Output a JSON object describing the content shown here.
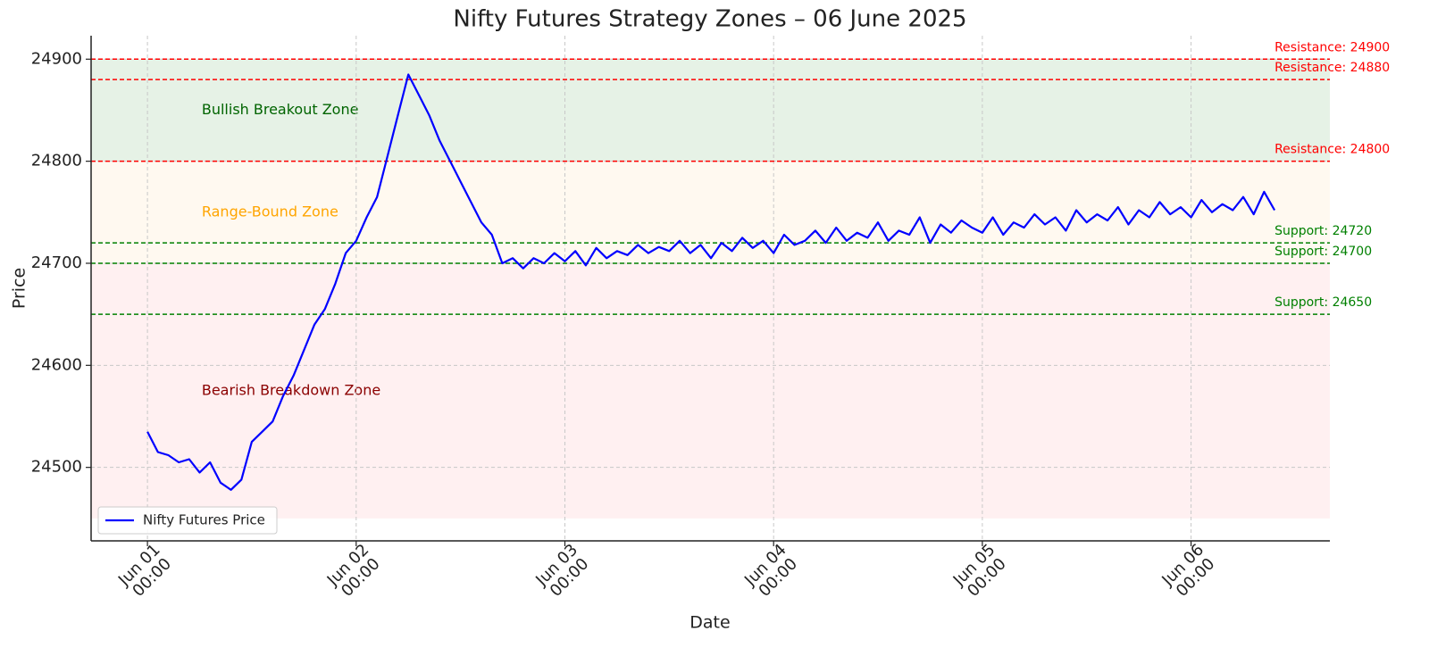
{
  "chart_data": {
    "type": "line",
    "title": "Nifty Futures Strategy Zones – 06 June 2025",
    "xlabel": "Date",
    "ylabel": "Price",
    "x": [
      0,
      0.05,
      0.1,
      0.15,
      0.2,
      0.25,
      0.3,
      0.35,
      0.4,
      0.45,
      0.5,
      0.55,
      0.6,
      0.65,
      0.7,
      0.75,
      0.8,
      0.85,
      0.9,
      0.95,
      1,
      1.05,
      1.1,
      1.15,
      1.2,
      1.25,
      1.3,
      1.35,
      1.4,
      1.45,
      1.5,
      1.55,
      1.6,
      1.65,
      1.7,
      1.75,
      1.8,
      1.85,
      1.9,
      1.95,
      2,
      2.05,
      2.1,
      2.15,
      2.2,
      2.25,
      2.3,
      2.35,
      2.4,
      2.45,
      2.5,
      2.55,
      2.6,
      2.65,
      2.7,
      2.75,
      2.8,
      2.85,
      2.9,
      2.95,
      3,
      3.05,
      3.1,
      3.15,
      3.2,
      3.25,
      3.3,
      3.35,
      3.4,
      3.45,
      3.5,
      3.55,
      3.6,
      3.65,
      3.7,
      3.75,
      3.8,
      3.85,
      3.9,
      3.95,
      4,
      4.05,
      4.1,
      4.15,
      4.2,
      4.25,
      4.3,
      4.35,
      4.4,
      4.45,
      4.5,
      4.55,
      4.6,
      4.65,
      4.7,
      4.75,
      4.8,
      4.85,
      4.9,
      4.95,
      5,
      5.05,
      5.1,
      5.15,
      5.2,
      5.25,
      5.3,
      5.35,
      5.4
    ],
    "series": [
      {
        "name": "Nifty Futures Price",
        "color": "#0000ff",
        "values": [
          24535,
          24515,
          24512,
          24505,
          24508,
          24495,
          24505,
          24485,
          24478,
          24488,
          24525,
          24535,
          24545,
          24570,
          24590,
          24615,
          24640,
          24655,
          24680,
          24710,
          24722,
          24745,
          24765,
          24805,
          24845,
          24885,
          24865,
          24845,
          24820,
          24800,
          24780,
          24760,
          24740,
          24728,
          24700,
          24705,
          24695,
          24705,
          24700,
          24710,
          24702,
          24712,
          24698,
          24715,
          24705,
          24712,
          24708,
          24718,
          24710,
          24716,
          24712,
          24722,
          24710,
          24718,
          24705,
          24720,
          24712,
          24725,
          24715,
          24722,
          24710,
          24728,
          24718,
          24722,
          24732,
          24720,
          24735,
          24722,
          24730,
          24725,
          24740,
          24722,
          24732,
          24728,
          24745,
          24720,
          24738,
          24730,
          24742,
          24735,
          24730,
          24745,
          24728,
          24740,
          24735,
          24748,
          24738,
          24745,
          24732,
          24752,
          24740,
          24748,
          24742,
          24755,
          24738,
          24752,
          24745,
          24760,
          24748,
          24755,
          24745,
          24762,
          24750,
          24758,
          24752,
          24765,
          24748,
          24770,
          24752
        ]
      }
    ],
    "zones": [
      {
        "label": "Bullish Breakout Zone",
        "range": [
          24800,
          24900
        ],
        "fill": "#e6f2e6",
        "color": "#006400"
      },
      {
        "label": "Range-Bound Zone",
        "range": [
          24700,
          24800
        ],
        "fill": "#fff9f0",
        "color": "#ffa500"
      },
      {
        "label": "Bearish Breakdown Zone",
        "range": [
          24450,
          24700
        ],
        "fill": "#fff0f1",
        "color": "#8b0000"
      }
    ],
    "levels": [
      {
        "label": "Resistance: 24900",
        "value": 24900,
        "color": "#ff0000"
      },
      {
        "label": "Resistance: 24880",
        "value": 24880,
        "color": "#ff0000"
      },
      {
        "label": "Resistance: 24800",
        "value": 24800,
        "color": "#ff0000"
      },
      {
        "label": "Support: 24720",
        "value": 24720,
        "color": "#008000"
      },
      {
        "label": "Support: 24700",
        "value": 24700,
        "color": "#008000"
      },
      {
        "label": "Support: 24650",
        "value": 24650,
        "color": "#008000"
      }
    ],
    "xlim": [
      -0.27,
      5.665
    ],
    "ylim": [
      24428,
      24923
    ],
    "xticks": [
      {
        "value": 0,
        "label": "Jun 01\n00:00"
      },
      {
        "value": 1,
        "label": "Jun 02\n00:00"
      },
      {
        "value": 2,
        "label": "Jun 03\n00:00"
      },
      {
        "value": 3,
        "label": "Jun 04\n00:00"
      },
      {
        "value": 4,
        "label": "Jun 05\n00:00"
      },
      {
        "value": 5,
        "label": "Jun 06\n00:00"
      }
    ],
    "yticks": [
      24500,
      24600,
      24700,
      24800,
      24900
    ],
    "grid": true,
    "legend": "lower left"
  }
}
